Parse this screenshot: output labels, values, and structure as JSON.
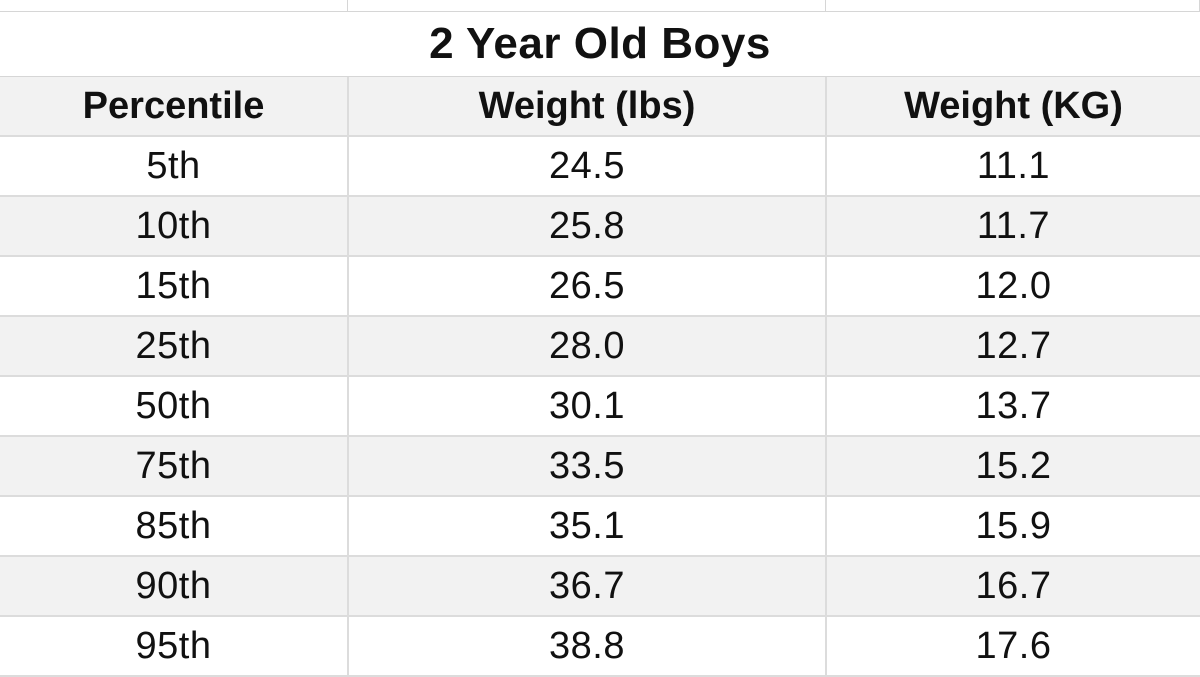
{
  "title": "2 Year Old Boys",
  "headers": [
    "Percentile",
    "Weight (lbs)",
    "Weight (KG)"
  ],
  "rows": [
    [
      "5th",
      "24.5",
      "11.1"
    ],
    [
      "10th",
      "25.8",
      "11.7"
    ],
    [
      "15th",
      "26.5",
      "12.0"
    ],
    [
      "25th",
      "28.0",
      "12.7"
    ],
    [
      "50th",
      "30.1",
      "13.7"
    ],
    [
      "75th",
      "33.5",
      "15.2"
    ],
    [
      "85th",
      "35.1",
      "15.9"
    ],
    [
      "90th",
      "36.7",
      "16.7"
    ],
    [
      "95th",
      "38.8",
      "17.6"
    ]
  ],
  "colors": {
    "header_bg": "#f2f2f2",
    "stripe_bg": "#f2f2f2",
    "grid_line": "#dcdcdc",
    "text": "#111111"
  }
}
